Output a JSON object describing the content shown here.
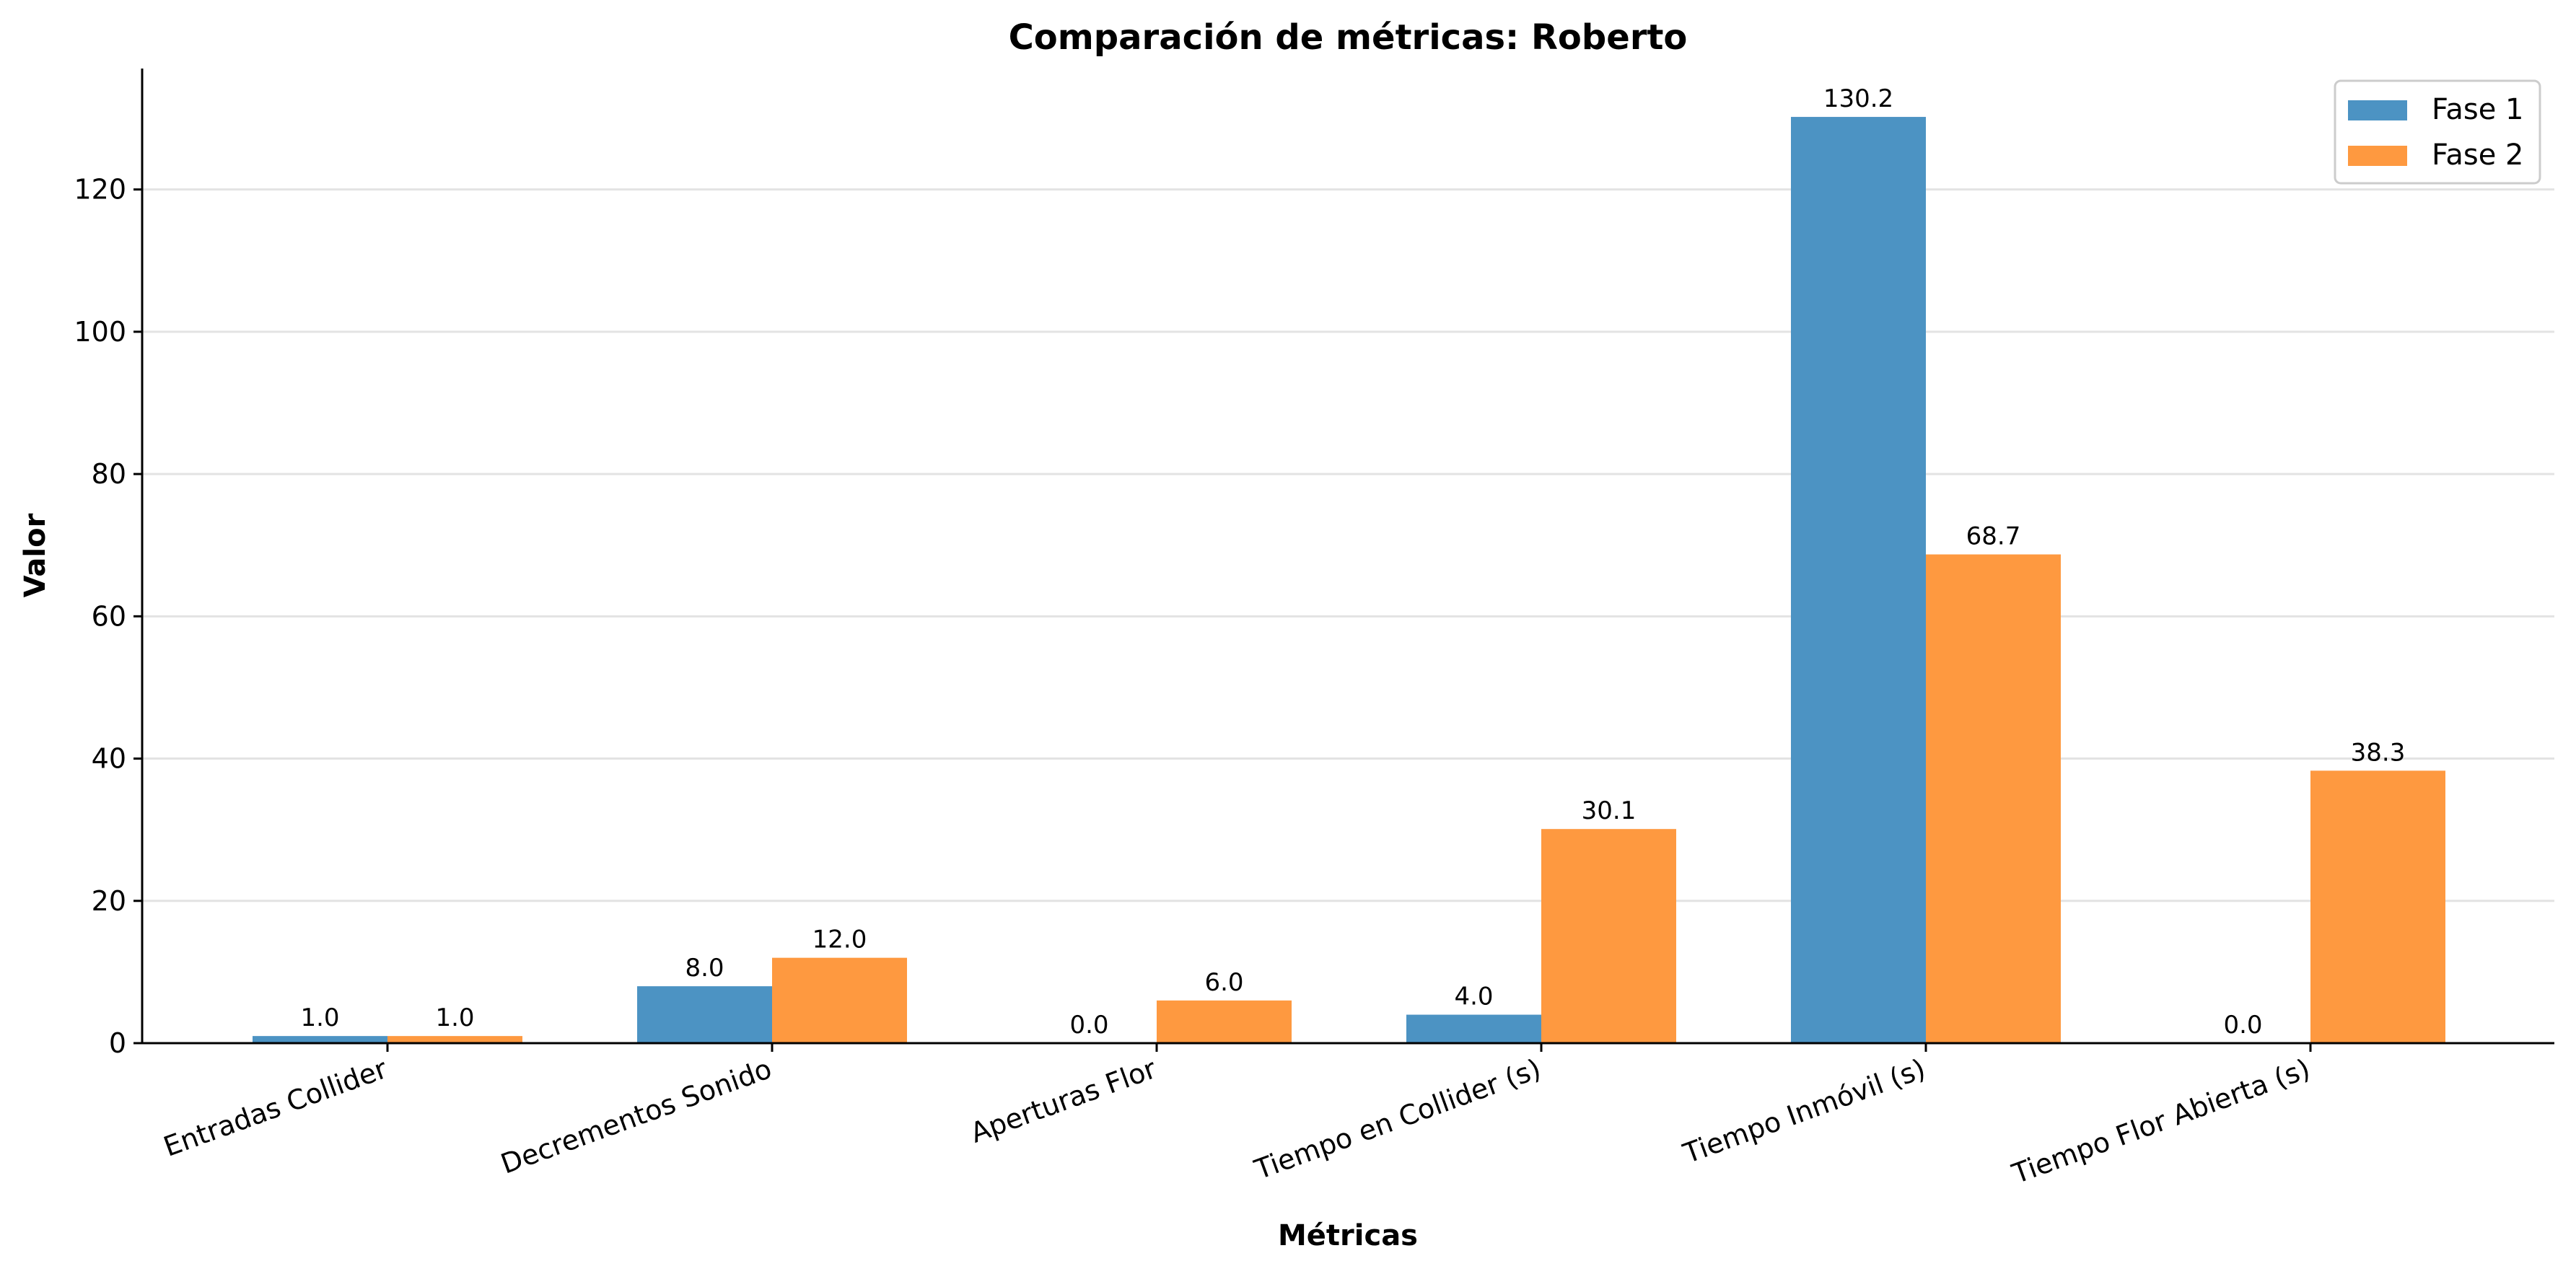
{
  "chart_data": {
    "type": "bar",
    "title": "Comparación de métricas: Roberto",
    "xlabel": "Métricas",
    "ylabel": "Valor",
    "categories": [
      "Entradas Collider",
      "Decrementos Sonido",
      "Aperturas Flor",
      "Tiempo en Collider (s)",
      "Tiempo Inmóvil (s)",
      "Tiempo Flor Abierta (s)"
    ],
    "series": [
      {
        "name": "Fase 1",
        "color": "#4c93c3",
        "values": [
          1.0,
          8.0,
          0.0,
          4.0,
          130.2,
          0.0
        ],
        "labels": [
          "1.0",
          "8.0",
          "0.0",
          "4.0",
          "130.2",
          "0.0"
        ]
      },
      {
        "name": "Fase 2",
        "color": "#fe9940",
        "values": [
          1.0,
          12.0,
          6.0,
          30.1,
          68.7,
          38.3
        ],
        "labels": [
          "1.0",
          "12.0",
          "6.0",
          "30.1",
          "68.7",
          "38.3"
        ]
      }
    ],
    "ylim": [
      0,
      137
    ],
    "yticks": [
      0,
      20,
      40,
      60,
      80,
      100,
      120
    ],
    "grid": "y",
    "legend_position": "top-right"
  }
}
